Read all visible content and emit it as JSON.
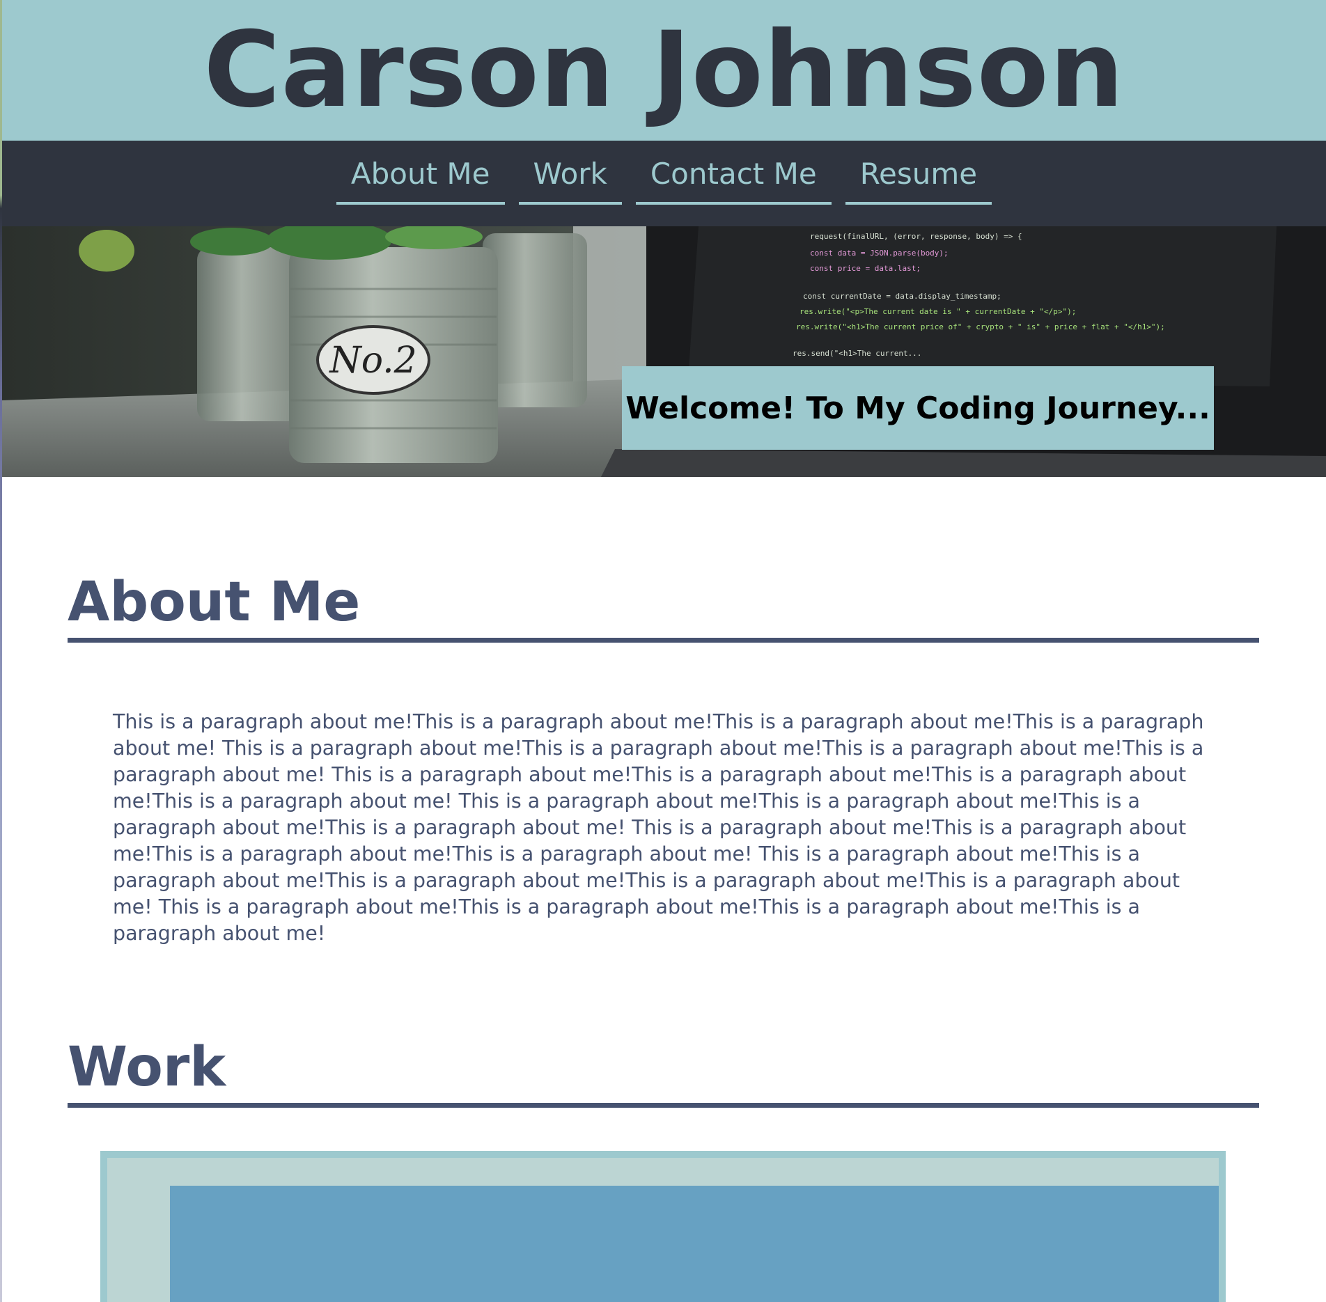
{
  "header": {
    "name": "Carson Johnson"
  },
  "nav": {
    "items": [
      {
        "label": "About Me"
      },
      {
        "label": "Work"
      },
      {
        "label": "Contact Me"
      },
      {
        "label": "Resume"
      }
    ]
  },
  "hero": {
    "plant_pot_label": "No.2",
    "code_lines": [
      "request(finalURL, (error, response, body) => {",
      "const data = JSON.parse(body);",
      "const price = data.last;",
      "const currentDate = data.display_timestamp;",
      "res.write(\"<p>The current date is \" + currentDate + \"</p>\");",
      "res.write(\"<h1>The current price of\" + crypto + \" is\" + price + flat + \"</h1>\");",
      "res.send(\"<h1>The current..."
    ],
    "banner_text": "Welcome! To My Coding Journey..."
  },
  "about": {
    "heading": "About Me",
    "paragraph": "This is a paragraph about me!This is a paragraph about me!This is a paragraph about me!This is a paragraph about me! This is a paragraph about me!This is a paragraph about me!This is a paragraph about me!This is a paragraph about me! This is a paragraph about me!This is a paragraph about me!This is a paragraph about me!This is a paragraph about me! This is a paragraph about me!This is a paragraph about me!This is a paragraph about me!This is a paragraph about me! This is a paragraph about me!This is a paragraph about me!This is a paragraph about me!This is a paragraph about me! This is a paragraph about me!This is a paragraph about me!This is a paragraph about me!This is a paragraph about me!This is a paragraph about me! This is a paragraph about me!This is a paragraph about me!This is a paragraph about me!This is a paragraph about me!"
  },
  "work": {
    "heading": "Work"
  },
  "colors": {
    "header_bg": "#9dc9ce",
    "nav_bg": "#2f343f",
    "heading_text": "#465270",
    "card_image": "#67a1c2"
  }
}
